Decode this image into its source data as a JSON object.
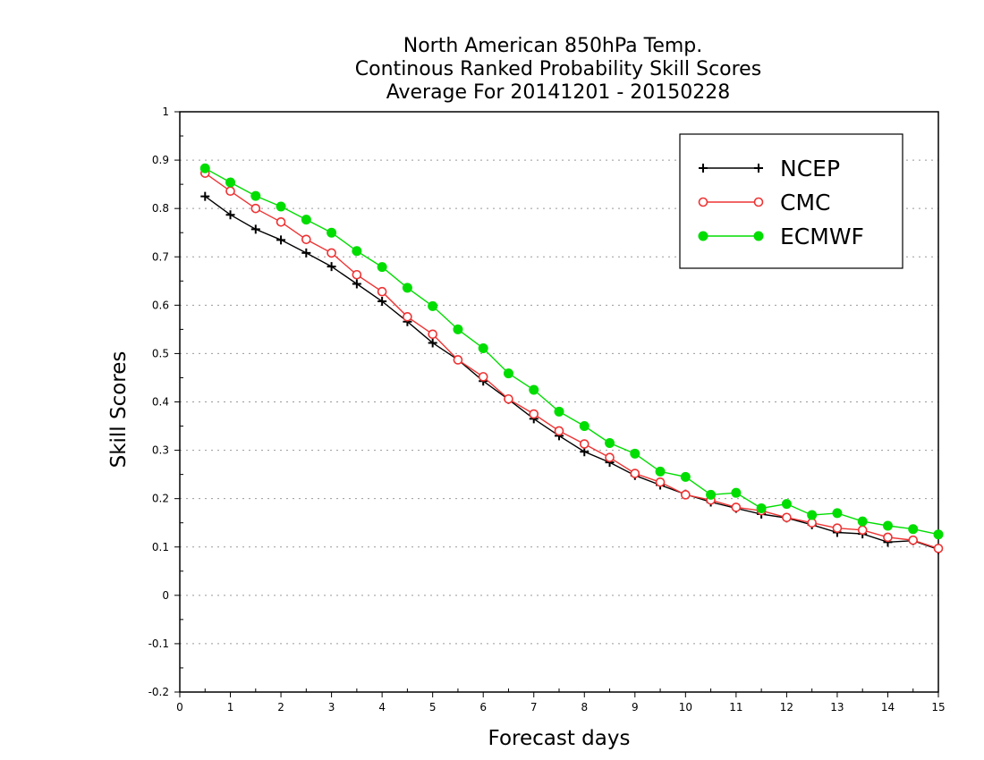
{
  "chart_data": {
    "type": "line",
    "title": [
      "North American 850hPa Temp.",
      "Continous Ranked Probability Skill Scores",
      "Average For 20141201 - 20150228"
    ],
    "xlabel": "Forecast days",
    "ylabel": "Skill Scores",
    "xlim": [
      0,
      15
    ],
    "ylim": [
      -0.2,
      1
    ],
    "xticks": [
      "0",
      "1",
      "2",
      "3",
      "4",
      "5",
      "6",
      "7",
      "8",
      "9",
      "10",
      "11",
      "12",
      "13",
      "14",
      "15"
    ],
    "yticks": [
      "-0.2",
      "-0.1",
      "0",
      "0.1",
      "0.2",
      "0.3",
      "0.4",
      "0.5",
      "0.6",
      "0.7",
      "0.8",
      "0.9",
      "1"
    ],
    "grid": true,
    "legend_position": "top-right",
    "x": [
      0.5,
      1,
      1.5,
      2,
      2.5,
      3,
      3.5,
      4,
      4.5,
      5,
      5.5,
      6,
      6.5,
      7,
      7.5,
      8,
      8.5,
      9,
      9.5,
      10,
      10.5,
      11,
      11.5,
      12,
      12.5,
      13,
      13.5,
      14,
      14.5,
      15
    ],
    "series": [
      {
        "name": "NCEP",
        "color": "#000000",
        "marker": "plus",
        "values": [
          0.825,
          0.787,
          0.757,
          0.735,
          0.708,
          0.68,
          0.644,
          0.608,
          0.566,
          0.522,
          0.487,
          0.443,
          0.405,
          0.365,
          0.33,
          0.297,
          0.275,
          0.248,
          0.228,
          0.209,
          0.193,
          0.18,
          0.168,
          0.16,
          0.146,
          0.13,
          0.127,
          0.11,
          0.113,
          0.095
        ]
      },
      {
        "name": "CMC",
        "color": "#ee3333",
        "marker": "open-circle",
        "values": [
          0.873,
          0.836,
          0.8,
          0.772,
          0.736,
          0.708,
          0.663,
          0.628,
          0.576,
          0.54,
          0.487,
          0.452,
          0.406,
          0.375,
          0.34,
          0.313,
          0.285,
          0.252,
          0.234,
          0.208,
          0.197,
          0.182,
          0.175,
          0.161,
          0.15,
          0.139,
          0.135,
          0.12,
          0.114,
          0.097
        ]
      },
      {
        "name": "ECMWF",
        "color": "#00dd00",
        "marker": "filled-circle",
        "values": [
          0.883,
          0.854,
          0.826,
          0.804,
          0.777,
          0.75,
          0.712,
          0.679,
          0.636,
          0.598,
          0.55,
          0.511,
          0.459,
          0.425,
          0.38,
          0.35,
          0.315,
          0.293,
          0.256,
          0.245,
          0.208,
          0.212,
          0.18,
          0.189,
          0.166,
          0.17,
          0.153,
          0.144,
          0.137,
          0.126
        ]
      }
    ]
  }
}
